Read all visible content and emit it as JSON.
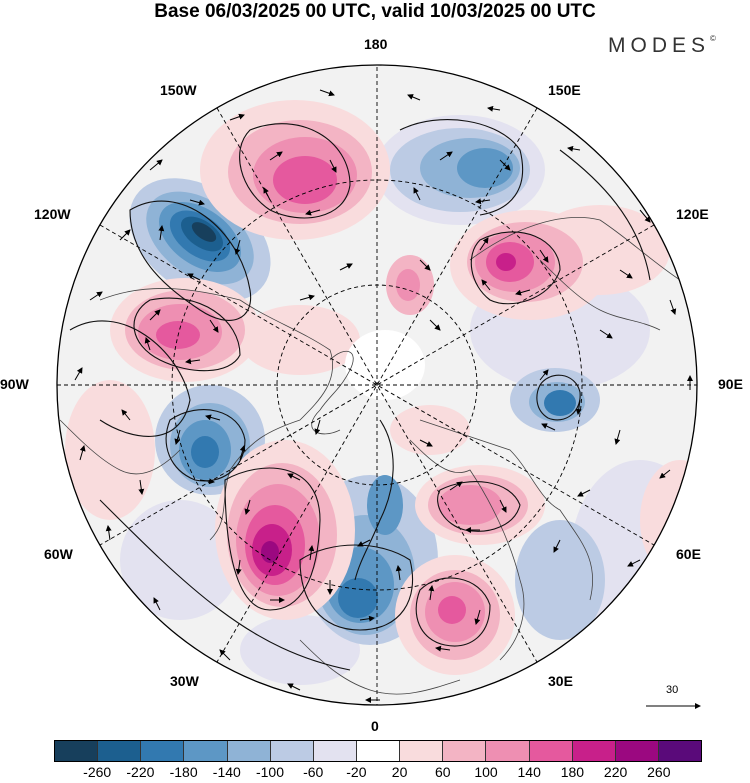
{
  "title": "Base 06/03/2025 00 UTC, valid 10/03/2025 00 UTC",
  "logo": {
    "text": "MODES",
    "mark": "©"
  },
  "longitude_labels": {
    "lon_180": "180",
    "lon_150e": "150E",
    "lon_120e": "120E",
    "lon_90e": "90E",
    "lon_60e": "60E",
    "lon_30e": "30E",
    "lon_0": "0",
    "lon_30w": "30W",
    "lon_60w": "60W",
    "lon_90w": "90W",
    "lon_120w": "120W",
    "lon_150w": "150W"
  },
  "reference_vector": {
    "label": "30"
  },
  "colorbar": {
    "colors": [
      "#173f5c",
      "#1c5f8f",
      "#3279b0",
      "#5d97c5",
      "#8fb3d6",
      "#bccbe4",
      "#e3e2f0",
      "#ffffff",
      "#f9dcdd",
      "#f3b4c4",
      "#ee8fb2",
      "#e5599e",
      "#c8208a",
      "#9b0880",
      "#5a0a7a"
    ],
    "labels": [
      "-260",
      "-220",
      "-180",
      "-140",
      "-100",
      "-60",
      "-20",
      "20",
      "60",
      "100",
      "140",
      "180",
      "220",
      "260"
    ]
  }
}
